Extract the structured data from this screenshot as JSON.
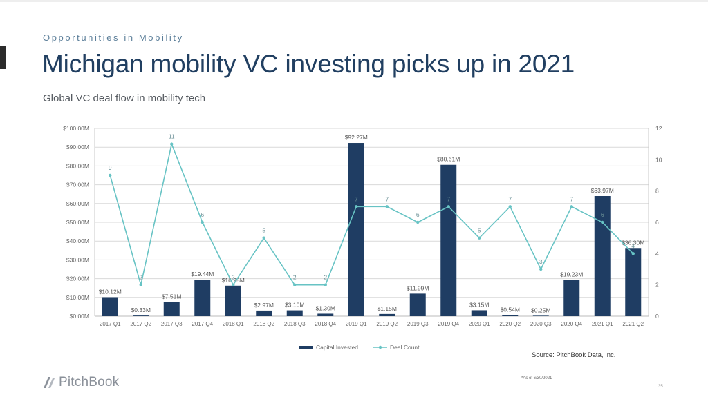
{
  "slide": {
    "kicker": "Opportunities in Mobility",
    "title": "Michigan mobility VC investing picks up in 2021",
    "subtitle": "Global VC deal flow in mobility tech",
    "source": "Source: PitchBook Data, Inc.",
    "as_of": "*As of 6/30/2021",
    "page_number": "35",
    "logo_text": "PitchBook"
  },
  "colors": {
    "bar": "#1f3d63",
    "line": "#67c3c4",
    "title": "#213f61",
    "axis_text": "#666666",
    "grid": "#d9d9d9"
  },
  "chart_data": {
    "type": "bar",
    "title": "",
    "categories": [
      "2017 Q1",
      "2017 Q2",
      "2017 Q3",
      "2017 Q4",
      "2018 Q1",
      "2018 Q2",
      "2018 Q3",
      "2018 Q4",
      "2019 Q1",
      "2019 Q2",
      "2019 Q3",
      "2019 Q4",
      "2020 Q1",
      "2020 Q2",
      "2020 Q3",
      "2020 Q4",
      "2021 Q1",
      "2021 Q2"
    ],
    "series": [
      {
        "name": "Capital Invested",
        "type": "bar",
        "axis": "left",
        "values": [
          10.12,
          0.33,
          7.51,
          19.44,
          16.25,
          2.97,
          3.1,
          1.3,
          92.27,
          1.15,
          11.99,
          80.61,
          3.15,
          0.54,
          0.25,
          19.23,
          63.97,
          36.3
        ],
        "labels": [
          "$10.12M",
          "$0.33M",
          "$7.51M",
          "$19.44M",
          "$16.25M",
          "$2.97M",
          "$3.10M",
          "$1.30M",
          "$92.27M",
          "$1.15M",
          "$11.99M",
          "$80.61M",
          "$3.15M",
          "$0.54M",
          "$0.25M",
          "$19.23M",
          "$63.97M",
          "$36.30M"
        ]
      },
      {
        "name": "Deal Count",
        "type": "line",
        "axis": "right",
        "values": [
          9,
          2,
          11,
          6,
          2,
          5,
          2,
          2,
          7,
          7,
          6,
          7,
          5,
          7,
          3,
          7,
          6,
          4
        ]
      }
    ],
    "y_left": {
      "min": 0,
      "max": 100,
      "ticks": [
        "$0.00M",
        "$10.00M",
        "$20.00M",
        "$30.00M",
        "$40.00M",
        "$50.00M",
        "$60.00M",
        "$70.00M",
        "$80.00M",
        "$90.00M",
        "$100.00M"
      ]
    },
    "y_right": {
      "min": 0,
      "max": 12,
      "ticks": [
        "0",
        "2",
        "4",
        "6",
        "8",
        "10",
        "12"
      ]
    },
    "grid": true,
    "legend_position": "bottom"
  }
}
